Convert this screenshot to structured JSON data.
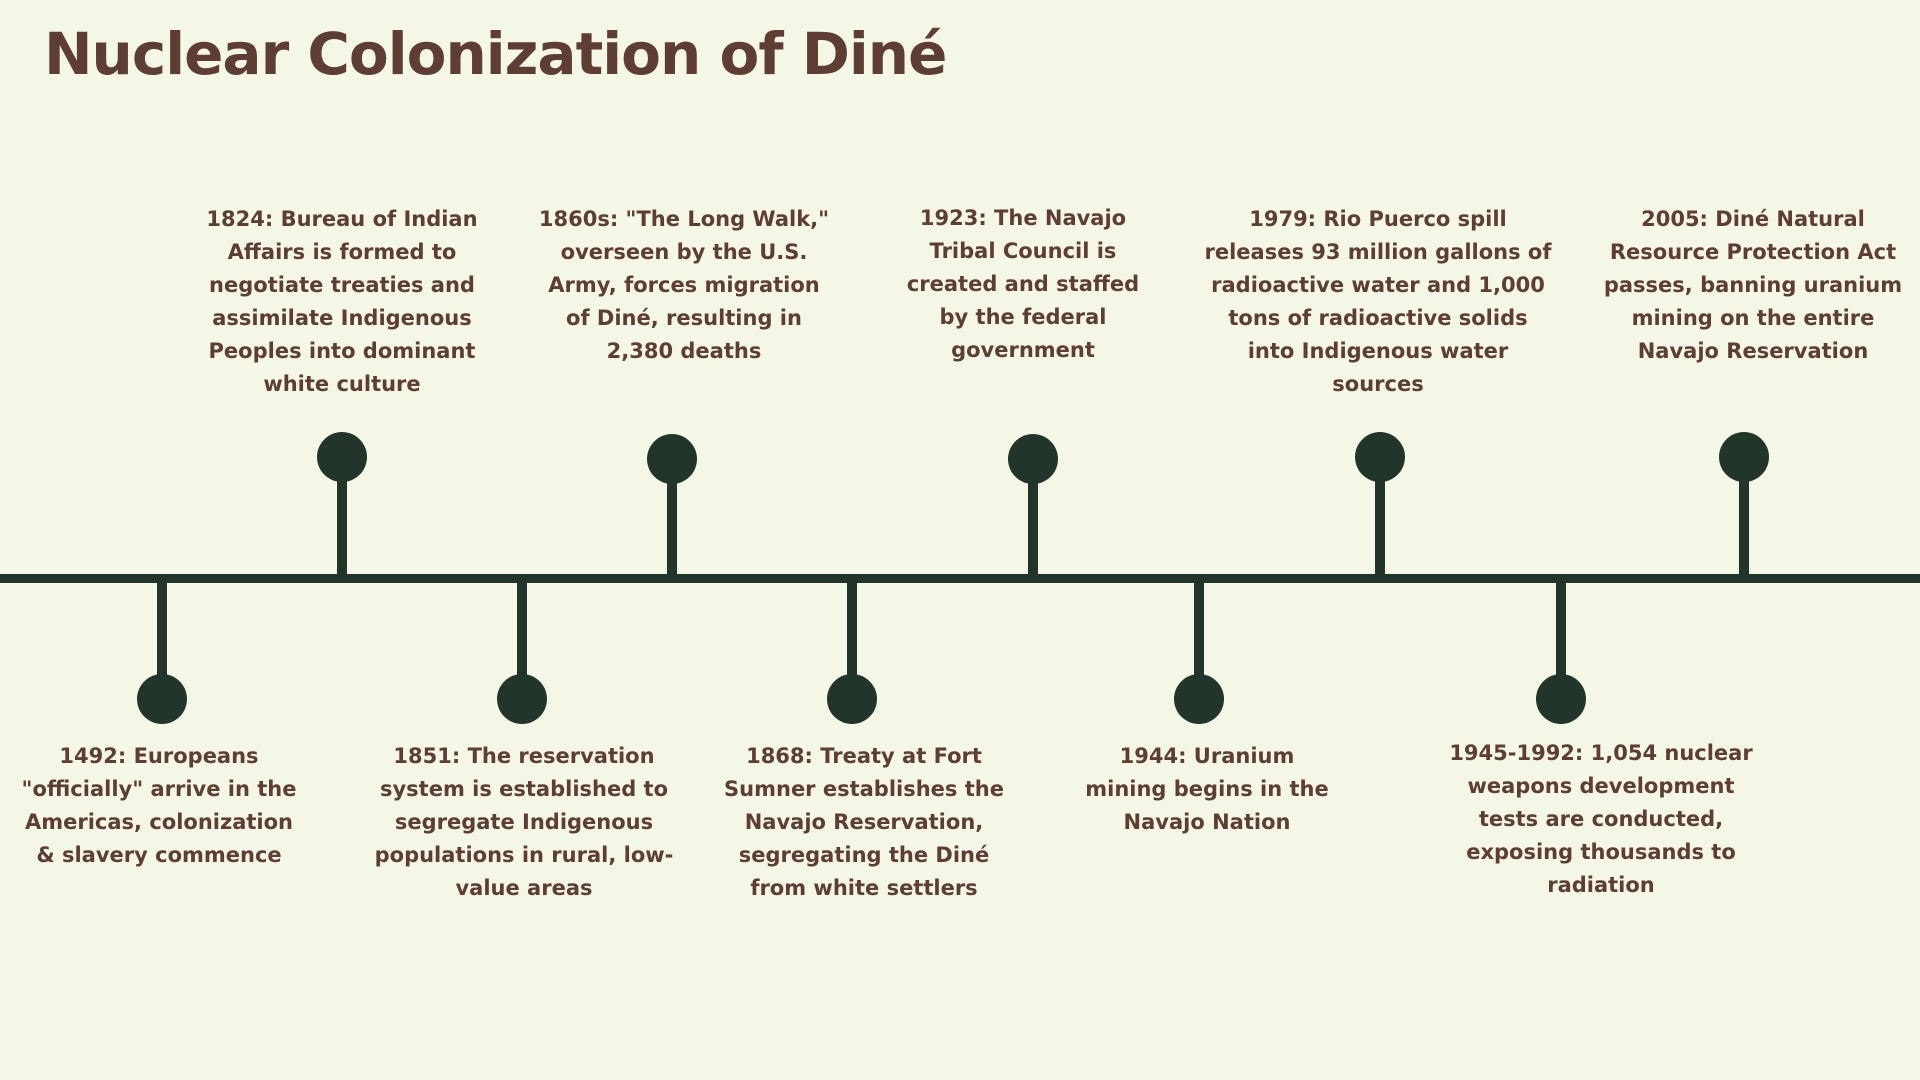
{
  "page": {
    "title": "Nuclear Colonization of Diné"
  },
  "colors": {
    "background": "#f4f7e6",
    "title": "#5e3d33",
    "text": "#5e3d33",
    "timeline": "#22352a"
  },
  "events": [
    {
      "position": "below",
      "text": "1492: Europeans \"officially\" arrive in the Americas, colonization & slavery commence"
    },
    {
      "position": "above",
      "text": "1824: Bureau of Indian Affairs is formed to negotiate treaties and assimilate Indigenous Peoples into dominant white culture"
    },
    {
      "position": "below",
      "text": "1851: The reservation system is established to segregate Indigenous populations in rural, low-value areas"
    },
    {
      "position": "above",
      "text": "1860s: \"The Long Walk,\" overseen by the U.S. Army, forces migration of Diné, resulting in 2,380 deaths"
    },
    {
      "position": "below",
      "text": "1868: Treaty at Fort Sumner establishes the Navajo Reservation, segregating the Diné from white settlers"
    },
    {
      "position": "above",
      "text": "1923: The Navajo Tribal Council is created and staffed by the federal government"
    },
    {
      "position": "below",
      "text": "1944: Uranium mining begins in the Navajo Nation"
    },
    {
      "position": "above",
      "text": "1979: Rio Puerco spill releases 93 million gallons of radioactive water and 1,000 tons of radioactive solids into Indigenous water sources"
    },
    {
      "position": "below",
      "text": "1945-1992: 1,054 nuclear weapons development tests are conducted, exposing thousands to radiation"
    },
    {
      "position": "above",
      "text": "2005: Diné Natural Resource Protection Act passes, banning uranium mining on the entire Navajo Reservation"
    }
  ]
}
